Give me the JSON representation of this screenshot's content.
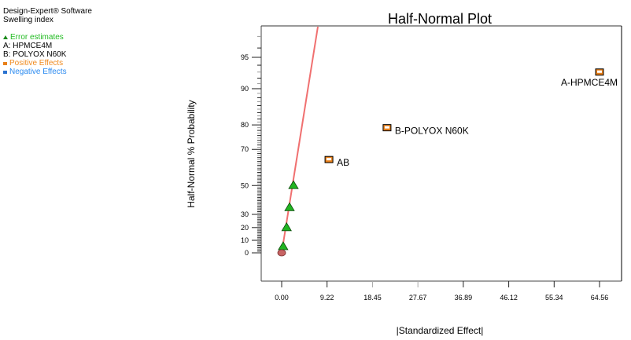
{
  "info": {
    "software": "Design-Expert® Software",
    "response": "Swelling index",
    "legend": [
      {
        "label": "Error estimates",
        "symbol": "triangle",
        "color": "#1a8a1a",
        "text_color": "#22bb22"
      },
      {
        "label": "A: HPMCE4M",
        "symbol": "none",
        "color": "#000000",
        "text_color": "#000000"
      },
      {
        "label": "B: POLYOX N60K",
        "symbol": "none",
        "color": "#000000",
        "text_color": "#000000"
      },
      {
        "label": "Positive Effects",
        "symbol": "square",
        "color": "#e8801a",
        "text_color": "#f08a1e"
      },
      {
        "label": "Negative Effects",
        "symbol": "square",
        "color": "#2a72d0",
        "text_color": "#2a8af0"
      }
    ]
  },
  "chart_data": {
    "type": "scatter",
    "title": "Half-Normal Plot",
    "xlabel": "|Standardized Effect|",
    "ylabel": "Half-Normal % Probability",
    "xlim": [
      -3.5,
      69.3
    ],
    "x_ticks": [
      "0.00",
      "9.22",
      "18.45",
      "27.67",
      "36.89",
      "46.12",
      "55.34",
      "64.56"
    ],
    "x_tick_values": [
      0.0,
      9.22,
      18.45,
      27.67,
      36.89,
      46.12,
      55.34,
      64.56
    ],
    "y_ticks": [
      "0",
      "10",
      "20",
      "30",
      "50",
      "70",
      "80",
      "90",
      "95"
    ],
    "y_tick_values": [
      0,
      10,
      20,
      30,
      50,
      70,
      80,
      90,
      95
    ],
    "y_scale": "half-normal probability",
    "grid": false,
    "colors": {
      "line": "#f07070",
      "error": "#22b422",
      "positive": "#e8801a",
      "negative": "#2a72d0",
      "origin": "#c86464"
    },
    "series": [
      {
        "name": "Error estimates",
        "marker": "triangle",
        "points": [
          {
            "x": 0.3,
            "y": 5
          },
          {
            "x": 1.0,
            "y": 20
          },
          {
            "x": 1.6,
            "y": 35
          },
          {
            "x": 2.4,
            "y": 50
          }
        ]
      },
      {
        "name": "Positive Effects",
        "marker": "square",
        "points": [
          {
            "x": 9.6,
            "y": 65,
            "label": "AB"
          },
          {
            "x": 21.4,
            "y": 79,
            "label": "B-POLYOX N60K"
          },
          {
            "x": 64.56,
            "y": 93,
            "label": "A-HPMCE4M"
          }
        ]
      },
      {
        "name": "Origin",
        "marker": "circle",
        "points": [
          {
            "x": 0.0,
            "y": 0
          }
        ]
      }
    ],
    "fit_line": {
      "from": {
        "x": 0.0,
        "y": 0
      },
      "to_px_through": "top-frame",
      "slope_note": "normal line through error estimates"
    }
  }
}
